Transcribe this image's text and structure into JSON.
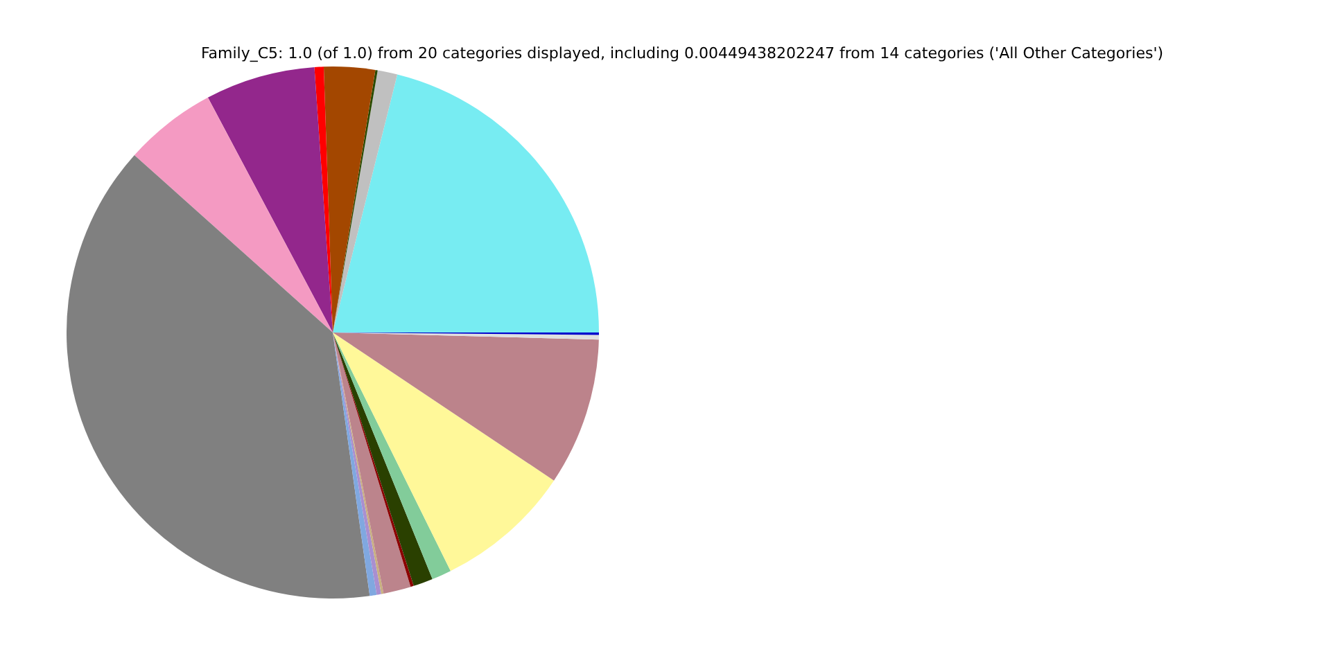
{
  "chart_data": {
    "type": "pie",
    "title": "Family_C5: 1.0 (of 1.0) from 20 categories displayed, including 0.00449438202247 from 14 categories ('All Other Categories')",
    "categories": [
      null,
      null,
      null,
      null,
      null,
      null,
      null,
      null,
      null,
      null,
      null,
      null,
      null,
      null,
      null,
      null,
      null,
      null,
      null
    ],
    "values": [
      21.1,
      1.2,
      0.14,
      3.1,
      0.56,
      6.67,
      5.61,
      38.84,
      0.42,
      0.28,
      0.14,
      1.67,
      0.19,
      1.19,
      1.19,
      8.31,
      8.97,
      0.28,
      0.14
    ],
    "colors": [
      "#77ecf2",
      "#c0c0c0",
      "#2a4a00",
      "#a34700",
      "#ff0000",
      "#93278c",
      "#f49ac2",
      "#808080",
      "#80a8e0",
      "#a98fd0",
      "#c8b080",
      "#bc848c",
      "#8b0000",
      "#2a4000",
      "#82cc9a",
      "#fff899",
      "#bc838b",
      "#e0e0e0",
      "#0000cc"
    ],
    "legend": false
  }
}
